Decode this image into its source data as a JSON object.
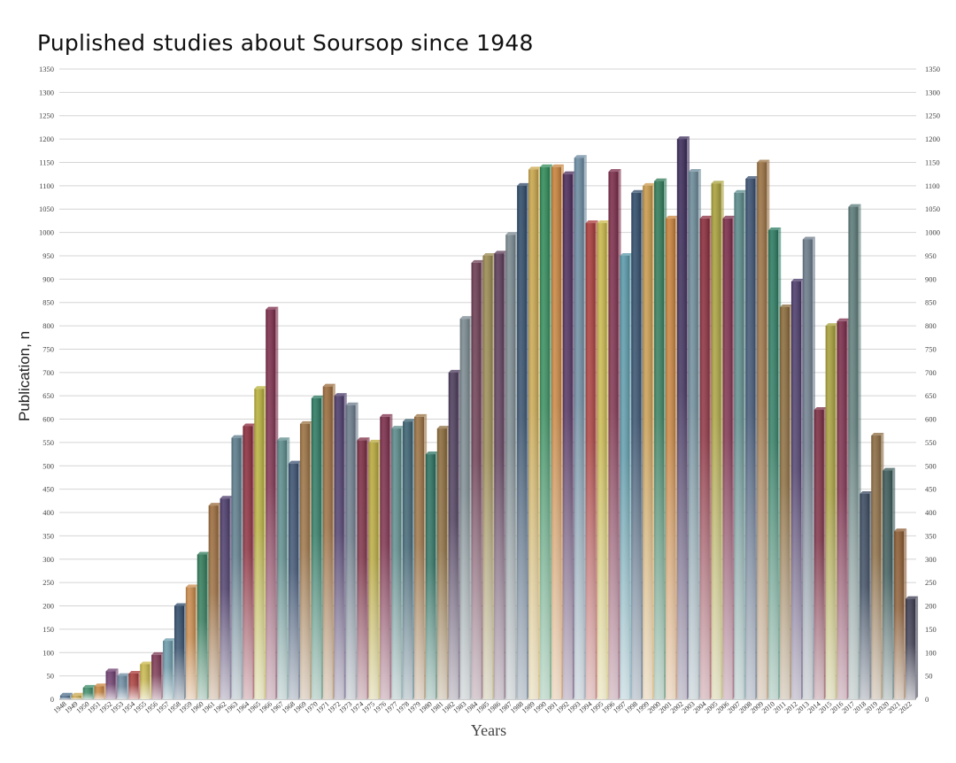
{
  "chart_data": {
    "type": "bar",
    "title": "Puplished studies about Soursop since 1948",
    "ylabel": "Publication, n",
    "xlabel": "Years",
    "ylim": [
      0,
      1350
    ],
    "ytick_step": 50,
    "grid": true,
    "legend": "none",
    "categories": [
      "1948",
      "1949",
      "1950",
      "1951",
      "1952",
      "1953",
      "1954",
      "1955",
      "1956",
      "1957",
      "1958",
      "1959",
      "1960",
      "1961",
      "1962",
      "1963",
      "1964",
      "1965",
      "1966",
      "1967",
      "1968",
      "1969",
      "1970",
      "1971",
      "1972",
      "1973",
      "1974",
      "1975",
      "1976",
      "1977",
      "1978",
      "1979",
      "1980",
      "1981",
      "1982",
      "1983",
      "1984",
      "1985",
      "1986",
      "1987",
      "1988",
      "1989",
      "1990",
      "1991",
      "1992",
      "1993",
      "1994",
      "1995",
      "1996",
      "1997",
      "1998",
      "1999",
      "2000",
      "2001",
      "2002",
      "2003",
      "2004",
      "2005",
      "2006",
      "2007",
      "2008",
      "2009",
      "2010",
      "2011",
      "2012",
      "2013",
      "2014",
      "2015",
      "2016",
      "2017",
      "2018",
      "2019",
      "2020",
      "2021",
      "2022"
    ],
    "values": [
      8,
      8,
      25,
      28,
      60,
      50,
      55,
      75,
      95,
      125,
      200,
      240,
      310,
      415,
      430,
      560,
      585,
      665,
      835,
      555,
      505,
      590,
      645,
      670,
      650,
      630,
      555,
      550,
      605,
      580,
      595,
      605,
      525,
      580,
      700,
      815,
      935,
      950,
      955,
      995,
      1100,
      1135,
      1140,
      1140,
      1125,
      1160,
      1020,
      1020,
      1130,
      950,
      1085,
      1100,
      1110,
      1030,
      1200,
      1130,
      1030,
      1105,
      1030,
      1085,
      1115,
      1150,
      1005,
      840,
      895,
      985,
      620,
      800,
      810,
      1055,
      440,
      565,
      490,
      360,
      215
    ],
    "colors": [
      "#4a6b8a",
      "#c9a64a",
      "#3a8a66",
      "#c8823a",
      "#6b3a6b",
      "#6a8aa0",
      "#a83a38",
      "#c9b84a",
      "#7a3450",
      "#6a9aaa",
      "#2e4a68",
      "#c98a4a",
      "#2f7a58",
      "#9a6a3a",
      "#4a3a6a",
      "#5a7a8a",
      "#8a2a3a",
      "#b8b03a",
      "#7a2a48",
      "#5a8a8a",
      "#3a5070",
      "#9a7040",
      "#2a7860",
      "#9a6a3a",
      "#4a3a6a",
      "#6a7a8a",
      "#7a2a40",
      "#b8a83a",
      "#7a2a48",
      "#5a8a8a",
      "#3a6070",
      "#9a7040",
      "#2a7060",
      "#8a6a3a",
      "#4a3a5a",
      "#7a8a90",
      "#6a3a50",
      "#9a8a50",
      "#5a3a58",
      "#7a8a90",
      "#2e4a68",
      "#c9a64a",
      "#2f8a58",
      "#c8823a",
      "#4a2a5a",
      "#6a8aa0",
      "#a83a38",
      "#c9b84a",
      "#7a2a48",
      "#5a9aaa",
      "#2e4a68",
      "#c99a4a",
      "#2f7a58",
      "#c8823a",
      "#3a2a58",
      "#6a8a98",
      "#8a2a3a",
      "#a8a03a",
      "#7a2a48",
      "#5a8a8a",
      "#3a5070",
      "#9a7040",
      "#2a7a60",
      "#8a6a3a",
      "#4a3a6a",
      "#6a7a8a",
      "#7a2a40",
      "#a8a03a",
      "#7a2a48",
      "#5a7a78",
      "#3a4a60",
      "#8a6a40",
      "#3a5858",
      "#8a5a30",
      "#3a3a50"
    ]
  }
}
